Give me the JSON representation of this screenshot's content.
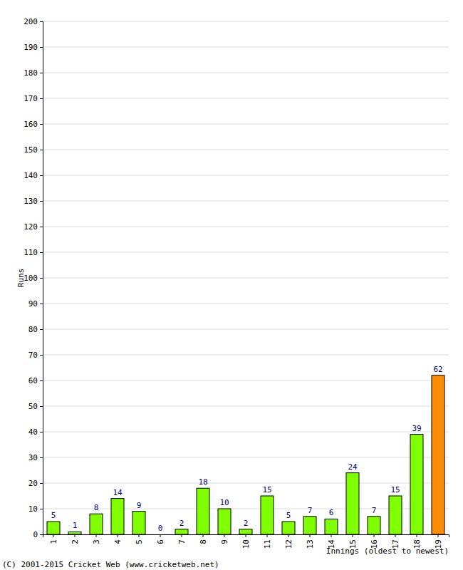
{
  "chart_data": {
    "type": "bar",
    "x_label": "Innings (oldest to newest)",
    "y_label": "Runs",
    "annotation": "(C) 2001-2015 Cricket Web (www.cricketweb.net)",
    "categories": [
      "1",
      "2",
      "3",
      "4",
      "5",
      "6",
      "7",
      "8",
      "9",
      "10",
      "11",
      "12",
      "13",
      "14",
      "15",
      "16",
      "17",
      "18",
      "19"
    ],
    "values": [
      5,
      1,
      8,
      14,
      9,
      0,
      2,
      18,
      10,
      2,
      15,
      5,
      7,
      6,
      24,
      7,
      15,
      39,
      62
    ],
    "colors": [
      "#80ff00",
      "#80ff00",
      "#80ff00",
      "#80ff00",
      "#80ff00",
      "#80ff00",
      "#80ff00",
      "#80ff00",
      "#80ff00",
      "#80ff00",
      "#80ff00",
      "#80ff00",
      "#80ff00",
      "#80ff00",
      "#80ff00",
      "#80ff00",
      "#80ff00",
      "#80ff00",
      "#ff8c00"
    ],
    "ylim": [
      0,
      200
    ],
    "yticks": [
      0,
      10,
      20,
      30,
      40,
      50,
      60,
      70,
      80,
      90,
      100,
      110,
      120,
      130,
      140,
      150,
      160,
      170,
      180,
      190,
      200
    ],
    "grid": true,
    "data_labels": true
  }
}
